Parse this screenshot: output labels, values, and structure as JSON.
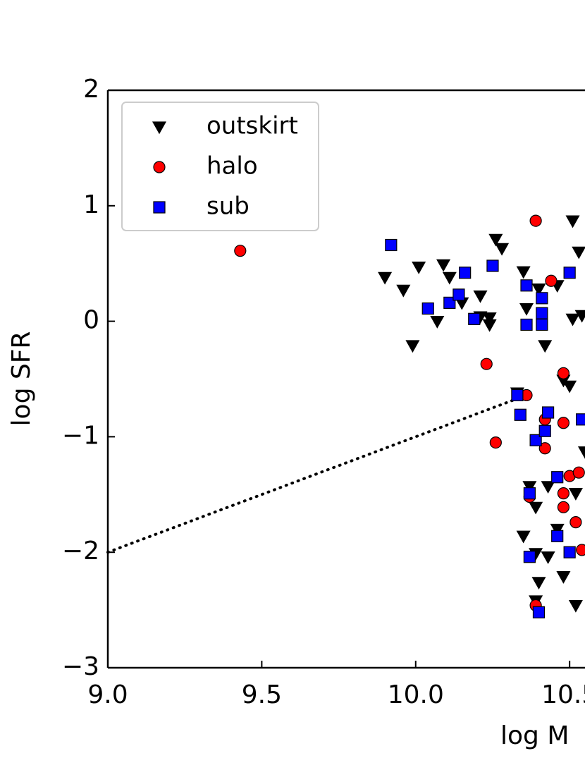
{
  "chart_data": {
    "type": "scatter",
    "x_label": "log M",
    "y_label": "log SFR",
    "xlim": [
      9.0,
      10.55
    ],
    "ylim": [
      -3,
      2
    ],
    "xticks": [
      {
        "value": 9.0,
        "label": "9.0"
      },
      {
        "value": 9.5,
        "label": "9.5"
      },
      {
        "value": 10.0,
        "label": "10.0"
      },
      {
        "value": 10.5,
        "label": "10.5"
      }
    ],
    "yticks": [
      2,
      1,
      0,
      {
        "value": -1,
        "label": "−1"
      },
      {
        "value": -2,
        "label": "−2"
      },
      {
        "value": -3,
        "label": "−3"
      }
    ],
    "legend": "upper left",
    "reference_line": {
      "x": [
        9.0,
        10.35
      ],
      "y": [
        -2,
        -0.65
      ]
    },
    "series": [
      {
        "name": "outskirt",
        "color": "#000000",
        "marker": "triangle-down",
        "x": [
          9.9,
          9.96,
          10.01,
          10.07,
          10.09,
          10.11,
          10.15,
          10.21,
          10.21,
          10.24,
          10.24,
          10.26,
          10.28,
          10.35,
          10.4,
          10.46,
          10.51,
          10.53,
          9.99,
          10.36,
          10.42,
          10.51,
          10.54,
          10.33,
          10.48,
          10.5,
          10.37,
          10.39,
          10.43,
          10.46,
          10.35,
          10.39,
          10.43,
          10.4,
          10.39,
          10.48,
          10.52,
          10.55,
          10.52
        ],
        "values": [
          0.38,
          0.27,
          0.47,
          0.0,
          0.49,
          0.38,
          0.16,
          0.22,
          0.04,
          -0.03,
          0.03,
          0.71,
          0.63,
          0.43,
          0.28,
          0.31,
          0.87,
          0.6,
          -0.21,
          0.11,
          -0.21,
          0.02,
          0.05,
          -0.62,
          -0.51,
          -0.56,
          -1.43,
          -1.61,
          -1.43,
          -1.8,
          -1.86,
          -2.01,
          -2.04,
          -2.26,
          -2.42,
          -2.21,
          -2.46,
          -1.13,
          -1.49
        ]
      },
      {
        "name": "halo",
        "color": "#ff0000",
        "marker": "circle",
        "x": [
          9.43,
          10.39,
          10.44,
          10.23,
          10.26,
          10.36,
          10.48,
          10.42,
          10.42,
          10.48,
          10.37,
          10.5,
          10.48,
          10.52,
          10.54,
          10.39,
          10.48,
          10.53
        ],
        "values": [
          0.61,
          0.87,
          0.35,
          -0.37,
          -1.05,
          -0.64,
          -0.45,
          -0.85,
          -1.1,
          -0.88,
          -1.52,
          -1.34,
          -1.61,
          -1.74,
          -1.98,
          -2.46,
          -1.49,
          -1.31
        ]
      },
      {
        "name": "sub",
        "color": "#0000ff",
        "marker": "square",
        "x": [
          9.92,
          10.04,
          10.11,
          10.14,
          10.16,
          10.19,
          10.25,
          10.36,
          10.36,
          10.41,
          10.41,
          10.41,
          10.5,
          10.33,
          10.34,
          10.39,
          10.43,
          10.42,
          10.54,
          10.37,
          10.46,
          10.37,
          10.46,
          10.5,
          10.4
        ],
        "values": [
          0.66,
          0.11,
          0.16,
          0.23,
          0.42,
          0.02,
          0.48,
          0.31,
          -0.03,
          0.2,
          0.07,
          -0.03,
          0.42,
          -0.64,
          -0.81,
          -1.03,
          -0.79,
          -0.95,
          -0.85,
          -1.49,
          -1.35,
          -2.04,
          -1.86,
          -2.0,
          -2.52
        ]
      }
    ]
  }
}
